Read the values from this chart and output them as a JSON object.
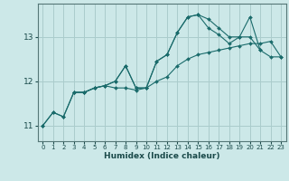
{
  "bg_color": "#cce8e8",
  "grid_color": "#aacccc",
  "line_color": "#1a6b6b",
  "marker_color": "#1a6b6b",
  "xlabel": "Humidex (Indice chaleur)",
  "ylabel_ticks": [
    11,
    12,
    13
  ],
  "xlim": [
    -0.5,
    23.5
  ],
  "ylim": [
    10.65,
    13.75
  ],
  "xticks": [
    0,
    1,
    2,
    3,
    4,
    5,
    6,
    7,
    8,
    9,
    10,
    11,
    12,
    13,
    14,
    15,
    16,
    17,
    18,
    19,
    20,
    21,
    22,
    23
  ],
  "series": [
    {
      "x": [
        0,
        1,
        2,
        3,
        4,
        5,
        6,
        7,
        8,
        9,
        10,
        11,
        12,
        13,
        14,
        15,
        16,
        17,
        18,
        19,
        20,
        21,
        22,
        23
      ],
      "y": [
        11.0,
        11.3,
        11.2,
        11.75,
        11.75,
        11.85,
        11.9,
        12.0,
        12.35,
        11.85,
        11.85,
        12.45,
        12.6,
        13.1,
        13.45,
        13.5,
        13.4,
        13.2,
        13.0,
        13.0,
        13.0,
        12.7,
        12.55,
        12.55
      ]
    },
    {
      "x": [
        0,
        1,
        2,
        3,
        4,
        5,
        6,
        7,
        8,
        9,
        10,
        11,
        12,
        13,
        14,
        15,
        16,
        17,
        18,
        19,
        20,
        21,
        22,
        23
      ],
      "y": [
        11.0,
        11.3,
        11.2,
        11.75,
        11.75,
        11.85,
        11.9,
        11.85,
        11.85,
        11.8,
        11.85,
        12.0,
        12.1,
        12.35,
        12.5,
        12.6,
        12.65,
        12.7,
        12.75,
        12.8,
        12.85,
        12.85,
        12.9,
        12.55
      ]
    },
    {
      "x": [
        3,
        4,
        5,
        6,
        7,
        8,
        9,
        10,
        11,
        12,
        13,
        14,
        15,
        16,
        17,
        18,
        19,
        20,
        21
      ],
      "y": [
        11.75,
        11.75,
        11.85,
        11.9,
        12.0,
        12.35,
        11.85,
        11.85,
        12.45,
        12.6,
        13.1,
        13.45,
        13.5,
        13.2,
        13.05,
        12.85,
        13.0,
        13.45,
        12.7
      ]
    }
  ]
}
